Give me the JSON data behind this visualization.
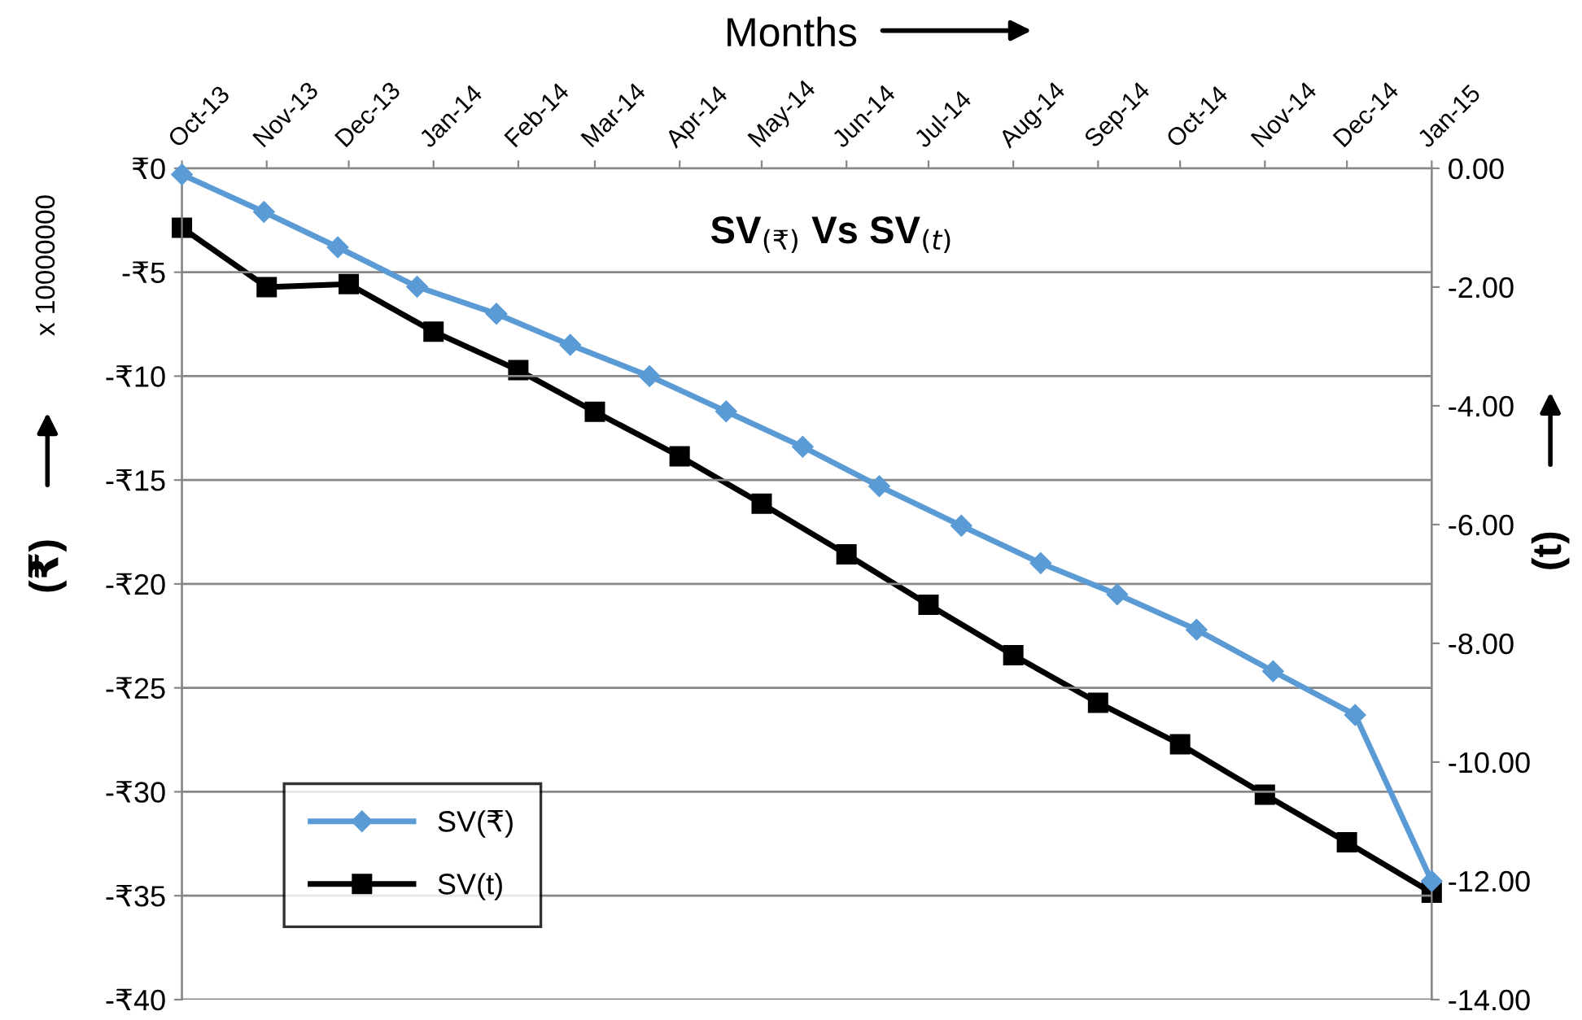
{
  "chart_data": {
    "type": "line",
    "title": "SV$_{(₹)}$ Vs SV$_{(t)}$",
    "xlabel": "Months",
    "ylabel": "(₹)",
    "y2label": "(t)",
    "annotations": [
      "x 10000000"
    ],
    "xlim": [
      "2013-10-01",
      "2015-01-01"
    ],
    "xticks": [
      {
        "value": "2013-10-01",
        "label": "Oct-13"
      },
      {
        "value": "2013-11-01",
        "label": "Nov-13"
      },
      {
        "value": "2013-12-01",
        "label": "Dec-13"
      },
      {
        "value": "2014-01-01",
        "label": "Jan-14"
      },
      {
        "value": "2014-02-01",
        "label": "Feb-14"
      },
      {
        "value": "2014-03-01",
        "label": "Mar-14"
      },
      {
        "value": "2014-04-01",
        "label": "Apr-14"
      },
      {
        "value": "2014-05-01",
        "label": "May-14"
      },
      {
        "value": "2014-06-01",
        "label": "Jun-14"
      },
      {
        "value": "2014-07-01",
        "label": "Jul-14"
      },
      {
        "value": "2014-08-01",
        "label": "Aug-14"
      },
      {
        "value": "2014-09-01",
        "label": "Sep-14"
      },
      {
        "value": "2014-10-01",
        "label": "Oct-14"
      },
      {
        "value": "2014-11-01",
        "label": "Nov-14"
      },
      {
        "value": "2014-12-01",
        "label": "Dec-14"
      },
      {
        "value": "2015-01-01",
        "label": "Jan-15"
      }
    ],
    "ylim": [
      -40,
      0
    ],
    "yticks": [
      {
        "value": 0,
        "label": "₹0"
      },
      {
        "value": -5,
        "label": "-₹5"
      },
      {
        "value": -10,
        "label": "-₹10"
      },
      {
        "value": -15,
        "label": "-₹15"
      },
      {
        "value": -20,
        "label": "-₹20"
      },
      {
        "value": -25,
        "label": "-₹25"
      },
      {
        "value": -30,
        "label": "-₹30"
      },
      {
        "value": -35,
        "label": "-₹35"
      },
      {
        "value": -40,
        "label": "-₹40"
      }
    ],
    "y2lim": [
      -14,
      0
    ],
    "y2ticks": [
      {
        "value": 0,
        "label": "0.00"
      },
      {
        "value": -2,
        "label": "-2.00"
      },
      {
        "value": -4,
        "label": "-4.00"
      },
      {
        "value": -6,
        "label": "-6.00"
      },
      {
        "value": -8,
        "label": "-8.00"
      },
      {
        "value": -10,
        "label": "-10.00"
      },
      {
        "value": -12,
        "label": "-12.00"
      },
      {
        "value": -14,
        "label": "-14.00"
      }
    ],
    "grid": "y",
    "legend": "bottom left",
    "series": [
      {
        "name": "SV(₹)",
        "color": "#5b9bd5",
        "marker": "diamond",
        "x": [
          "2013-10-01",
          "2013-10-31",
          "2013-11-27",
          "2013-12-26",
          "2014-01-24",
          "2014-02-20",
          "2014-03-21",
          "2014-04-18",
          "2014-05-16",
          "2014-06-13",
          "2014-07-13",
          "2014-08-11",
          "2014-09-08",
          "2014-10-07",
          "2014-11-04",
          "2014-12-04",
          "2015-01-01"
        ],
        "values": [
          -0.3,
          -2.1,
          -3.8,
          -5.7,
          -7.0,
          -8.5,
          -10.0,
          -11.7,
          -13.4,
          -15.3,
          -17.2,
          -19.0,
          -20.5,
          -22.2,
          -24.2,
          -26.3,
          -34.3
        ]
      },
      {
        "name": "SV(t)",
        "color": "#000000",
        "marker": "square",
        "axis": "y2",
        "x": [
          "2013-10-01",
          "2013-11-01",
          "2013-12-01",
          "2014-01-01",
          "2014-02-01",
          "2014-03-01",
          "2014-04-01",
          "2014-05-01",
          "2014-06-01",
          "2014-07-01",
          "2014-08-01",
          "2014-09-01",
          "2014-10-01",
          "2014-11-01",
          "2014-12-01",
          "2015-01-01"
        ],
        "values": [
          -1.0,
          -2.0,
          -1.95,
          -2.75,
          -3.4,
          -4.1,
          -4.85,
          -5.65,
          -6.5,
          -7.35,
          -8.2,
          -9.0,
          -9.7,
          -10.55,
          -11.35,
          -12.2
        ]
      }
    ]
  }
}
